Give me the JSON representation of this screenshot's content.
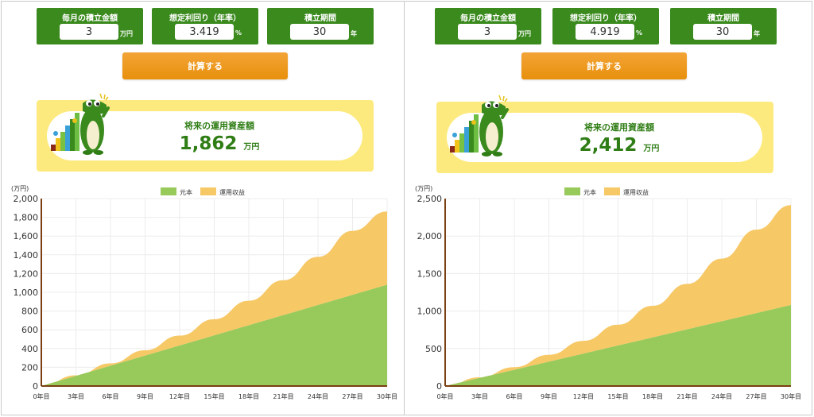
{
  "panels": [
    {
      "monthly": {
        "label": "毎月の積立金額",
        "value": "3",
        "unit": "万円"
      },
      "rate": {
        "label": "想定利回り（年率）",
        "value": "3.419",
        "unit": "%"
      },
      "period": {
        "label": "積立期間",
        "value": "30",
        "unit": "年"
      },
      "calc_label": "計算する",
      "result": {
        "title": "将来の運用資産額",
        "value": "1,862",
        "unit": "万円"
      }
    },
    {
      "monthly": {
        "label": "毎月の積立金額",
        "value": "3",
        "unit": "万円"
      },
      "rate": {
        "label": "想定利回り（年率）",
        "value": "4.919",
        "unit": "%"
      },
      "period": {
        "label": "積立期間",
        "value": "30",
        "unit": "年"
      },
      "calc_label": "計算する",
      "result": {
        "title": "将来の運用資産額",
        "value": "2,412",
        "unit": "万円"
      }
    }
  ],
  "colors": {
    "principal": "#98c95b",
    "gain": "#f6c866",
    "panel_green": "#3a8a1e",
    "button_orange": "#e8900d",
    "card_yellow": "#fdea7e",
    "axis_brown": "#7a3e12"
  },
  "icons": {
    "mascot": "crocodile-mascot-icon"
  },
  "chart_data": [
    {
      "type": "area",
      "ylabel": "(万円)",
      "legend_position": "top-center",
      "legend": [
        "元本",
        "運用収益"
      ],
      "x": [
        "0年目",
        "3年目",
        "6年目",
        "9年目",
        "12年目",
        "15年目",
        "18年目",
        "21年目",
        "24年目",
        "27年目",
        "30年目"
      ],
      "ylim": [
        0,
        2000
      ],
      "yticks": [
        "0",
        "200",
        "400",
        "600",
        "800",
        "1,000",
        "1,200",
        "1,400",
        "1,600",
        "1,800",
        "2,000"
      ],
      "series": [
        {
          "name": "元本",
          "values": [
            0,
            108,
            216,
            324,
            432,
            540,
            648,
            756,
            864,
            972,
            1080
          ]
        },
        {
          "name": "運用収益",
          "values": [
            0,
            6,
            25,
            57,
            106,
            173,
            262,
            373,
            514,
            684,
            782
          ]
        }
      ],
      "grid": true
    },
    {
      "type": "area",
      "ylabel": "(万円)",
      "legend_position": "top-center",
      "legend": [
        "元本",
        "運用収益"
      ],
      "x": [
        "0年目",
        "3年目",
        "6年目",
        "9年目",
        "12年目",
        "15年目",
        "18年目",
        "21年目",
        "24年目",
        "27年目",
        "30年目"
      ],
      "ylim": [
        0,
        2500
      ],
      "yticks": [
        "0",
        "500",
        "1,000",
        "1,500",
        "2,000",
        "2,500"
      ],
      "series": [
        {
          "name": "元本",
          "values": [
            0,
            108,
            216,
            324,
            432,
            540,
            648,
            756,
            864,
            972,
            1080
          ]
        },
        {
          "name": "運用収益",
          "values": [
            0,
            8,
            36,
            92,
            170,
            278,
            422,
            606,
            835,
            1113,
            1332
          ]
        }
      ],
      "grid": true
    }
  ]
}
